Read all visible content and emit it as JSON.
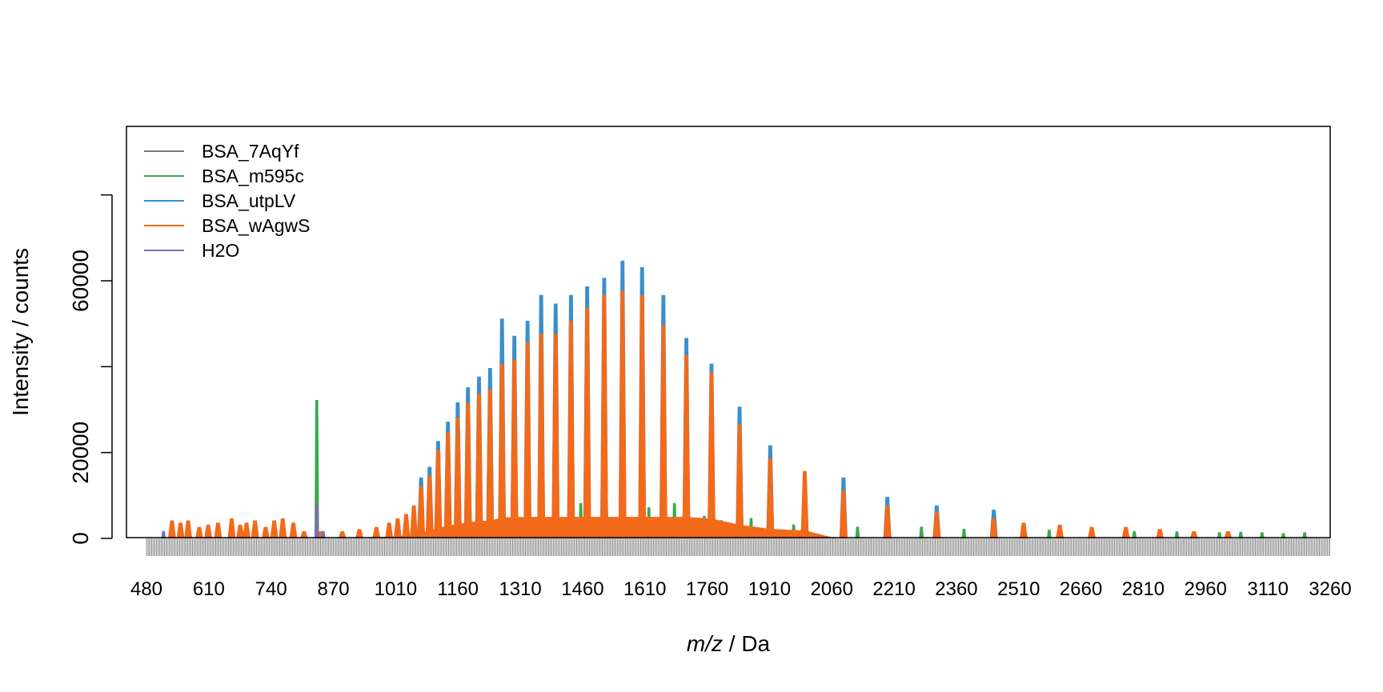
{
  "chart_data": {
    "type": "line",
    "title": "",
    "xlabel_italic": "m/z",
    "xlabel_sep": " / ",
    "xlabel_unit": "Da",
    "ylabel": "Intensity / counts",
    "xlim": [
      480,
      3260
    ],
    "ylim": [
      0,
      96000
    ],
    "grid": false,
    "legend_position": "top-left",
    "x_ticks": [
      "480",
      "610",
      "740",
      "870",
      "1010",
      "1160",
      "1310",
      "1460",
      "1610",
      "1760",
      "1910",
      "2060",
      "2210",
      "2360",
      "2510",
      "2660",
      "2810",
      "2960",
      "3110",
      "3260"
    ],
    "y_ticks": [
      {
        "value": 0,
        "label": "0"
      },
      {
        "value": 20000,
        "label": "20000"
      },
      {
        "value": 40000,
        "label": ""
      },
      {
        "value": 60000,
        "label": "60000"
      },
      {
        "value": 80000,
        "label": ""
      }
    ],
    "legend": [
      {
        "name": "BSA_7AqYf",
        "color": "#777777"
      },
      {
        "name": "BSA_m595c",
        "color": "#3aaa4a"
      },
      {
        "name": "BSA_utpLV",
        "color": "#3a8fcc"
      },
      {
        "name": "BSA_wAgwS",
        "color": "#f26a1a"
      },
      {
        "name": "H2O",
        "color": "#7b6fb0"
      }
    ],
    "series": [
      {
        "name": "BSA_utpLV",
        "color": "#3a8fcc",
        "peaks": [
          [
            1125,
            14000
          ],
          [
            1145,
            16500
          ],
          [
            1165,
            22500
          ],
          [
            1188,
            27000
          ],
          [
            1211,
            31500
          ],
          [
            1235,
            35000
          ],
          [
            1261,
            37500
          ],
          [
            1287,
            39500
          ],
          [
            1315,
            51000
          ],
          [
            1344,
            47000
          ],
          [
            1375,
            50500
          ],
          [
            1407,
            56500
          ],
          [
            1441,
            54500
          ],
          [
            1477,
            56500
          ],
          [
            1515,
            58500
          ],
          [
            1555,
            60500
          ],
          [
            1598,
            64500
          ],
          [
            1644,
            63000
          ],
          [
            1694,
            56500
          ],
          [
            1748,
            46500
          ],
          [
            1807,
            40500
          ],
          [
            1873,
            30500
          ],
          [
            1945,
            21500
          ],
          [
            2026,
            14500
          ],
          [
            2117,
            14000
          ],
          [
            2220,
            9500
          ],
          [
            2336,
            7500
          ],
          [
            2470,
            6500
          ]
        ]
      },
      {
        "name": "BSA_wAgwS",
        "color": "#f26a1a",
        "peaks": [
          [
            540,
            4000
          ],
          [
            560,
            3500
          ],
          [
            578,
            4000
          ],
          [
            604,
            2500
          ],
          [
            625,
            3000
          ],
          [
            648,
            3500
          ],
          [
            680,
            4500
          ],
          [
            700,
            3000
          ],
          [
            715,
            3500
          ],
          [
            735,
            4000
          ],
          [
            760,
            2500
          ],
          [
            780,
            4000
          ],
          [
            800,
            4500
          ],
          [
            825,
            3500
          ],
          [
            850,
            1500
          ],
          [
            890,
            1500
          ],
          [
            940,
            1500
          ],
          [
            980,
            2000
          ],
          [
            1020,
            2500
          ],
          [
            1050,
            3500
          ],
          [
            1070,
            4500
          ],
          [
            1090,
            5500
          ],
          [
            1108,
            7500
          ],
          [
            1125,
            12000
          ],
          [
            1145,
            14500
          ],
          [
            1165,
            20500
          ],
          [
            1188,
            24500
          ],
          [
            1211,
            28000
          ],
          [
            1235,
            31500
          ],
          [
            1261,
            33500
          ],
          [
            1287,
            34500
          ],
          [
            1315,
            40500
          ],
          [
            1344,
            41500
          ],
          [
            1375,
            45500
          ],
          [
            1407,
            47500
          ],
          [
            1441,
            47500
          ],
          [
            1477,
            50500
          ],
          [
            1515,
            53500
          ],
          [
            1555,
            56500
          ],
          [
            1598,
            57500
          ],
          [
            1644,
            56500
          ],
          [
            1694,
            49500
          ],
          [
            1748,
            42500
          ],
          [
            1807,
            38500
          ],
          [
            1873,
            26500
          ],
          [
            1945,
            18500
          ],
          [
            2026,
            15500
          ],
          [
            2117,
            11000
          ],
          [
            2220,
            7500
          ],
          [
            2336,
            6000
          ],
          [
            2470,
            4500
          ],
          [
            2540,
            3500
          ],
          [
            2625,
            3000
          ],
          [
            2700,
            2500
          ],
          [
            2780,
            2500
          ],
          [
            2860,
            2000
          ],
          [
            2940,
            1500
          ],
          [
            3020,
            1500
          ]
        ]
      },
      {
        "name": "BSA_m595c",
        "color": "#3aaa4a",
        "peaks": [
          [
            880,
            32000
          ],
          [
            1500,
            8000
          ],
          [
            1560,
            8500
          ],
          [
            1600,
            8000
          ],
          [
            1660,
            7000
          ],
          [
            1720,
            8000
          ],
          [
            1790,
            5000
          ],
          [
            1830,
            4000
          ],
          [
            1900,
            4500
          ],
          [
            2000,
            3000
          ],
          [
            2150,
            2500
          ],
          [
            2300,
            2500
          ],
          [
            2400,
            2000
          ],
          [
            2600,
            1800
          ],
          [
            2700,
            2000
          ],
          [
            2800,
            1500
          ],
          [
            2900,
            1400
          ],
          [
            3000,
            1200
          ],
          [
            3050,
            1300
          ],
          [
            3100,
            1200
          ],
          [
            3150,
            1000
          ],
          [
            3200,
            1200
          ]
        ]
      },
      {
        "name": "BSA_7AqYf",
        "color": "#777777",
        "peaks": [
          [
            880,
            6000
          ]
        ]
      },
      {
        "name": "H2O",
        "color": "#7b6fb0",
        "peaks": [
          [
            880,
            8000
          ],
          [
            520,
            1500
          ],
          [
            895,
            1500
          ]
        ]
      }
    ]
  }
}
